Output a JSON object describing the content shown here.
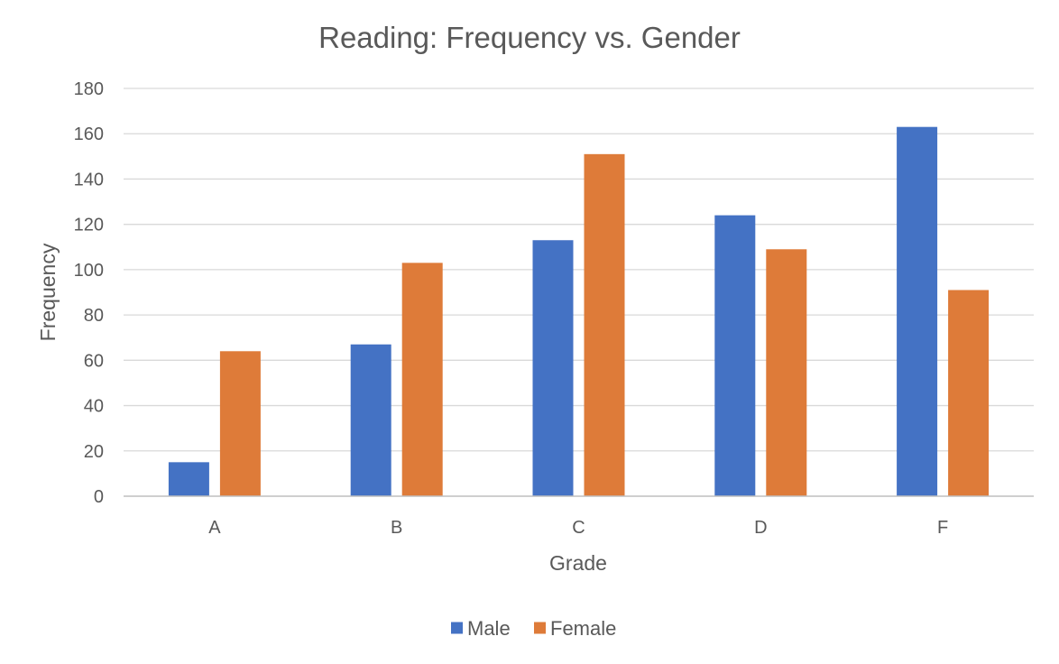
{
  "chart_data": {
    "type": "bar",
    "title": "Reading: Frequency vs. Gender",
    "xlabel": "Grade",
    "ylabel": "Frequency",
    "categories": [
      "A",
      "B",
      "C",
      "D",
      "F"
    ],
    "series": [
      {
        "name": "Male",
        "color": "#4472c4",
        "values": [
          15,
          67,
          113,
          124,
          163
        ]
      },
      {
        "name": "Female",
        "color": "#de7b39",
        "values": [
          64,
          103,
          151,
          109,
          91
        ]
      }
    ],
    "ylim": [
      0,
      180
    ],
    "yticks": [
      0,
      20,
      40,
      60,
      80,
      100,
      120,
      140,
      160,
      180
    ],
    "grid": true,
    "legend_position": "bottom"
  }
}
